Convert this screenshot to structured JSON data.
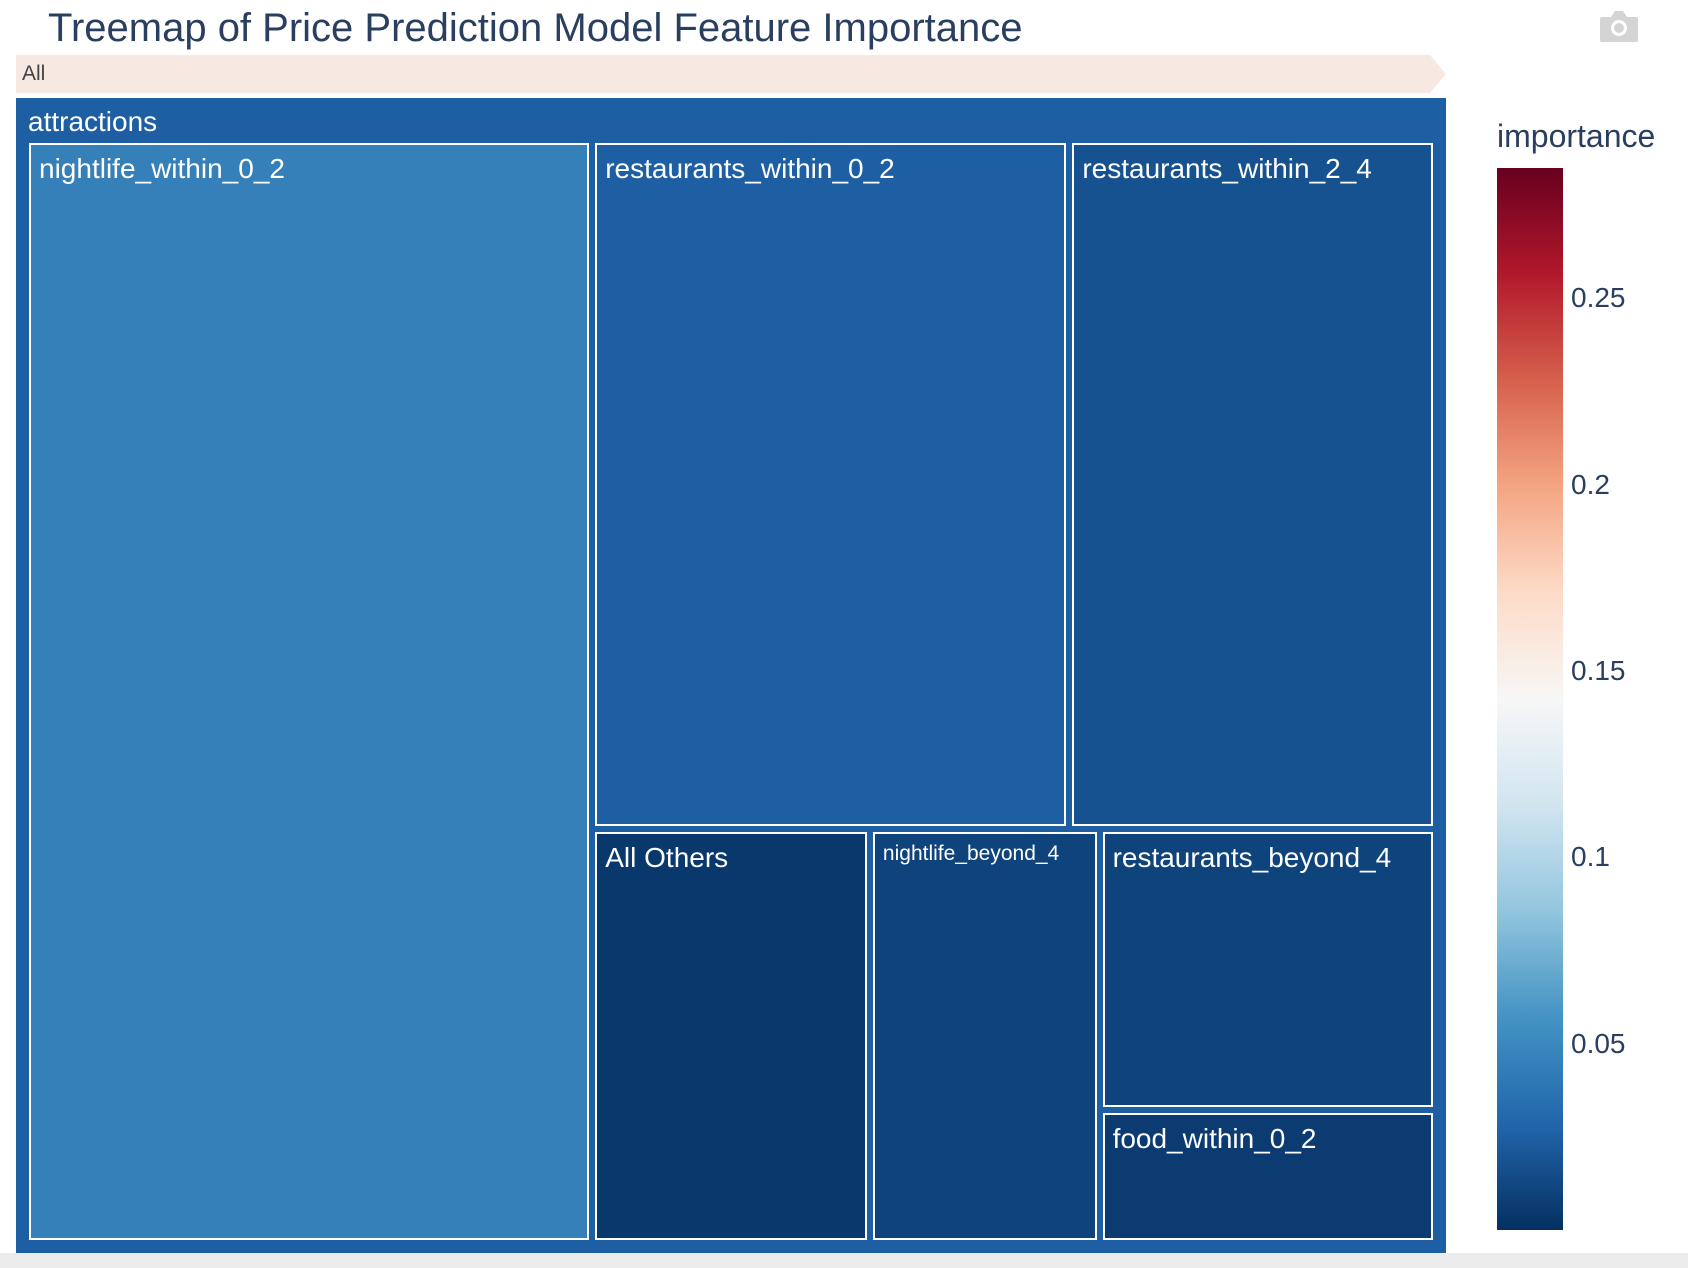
{
  "title": "Treemap of Price Prediction Model Feature Importance",
  "toolbar": {
    "camera_icon": "camera-icon"
  },
  "pathbar": {
    "label": "All"
  },
  "chart_data": {
    "type": "treemap",
    "root": {
      "label": "attractions",
      "importance": 0.025,
      "children": [
        {
          "label": "nightlife_within_0_2",
          "importance": 0.045,
          "value": 0.1412
        },
        {
          "label": "restaurants_within_0_2",
          "importance": 0.025,
          "value": 0.0743
        },
        {
          "label": "restaurants_within_2_4",
          "importance": 0.018,
          "value": 0.0571
        },
        {
          "label": "All Others",
          "importance": 0.004,
          "value": 0.026
        },
        {
          "label": "nightlife_beyond_4",
          "importance": 0.01,
          "value": 0.0215
        },
        {
          "label": "restaurants_beyond_4",
          "importance": 0.01,
          "value": 0.0214
        },
        {
          "label": "food_within_0_2",
          "importance": 0.006,
          "value": 0.0101
        }
      ]
    },
    "colorbar": {
      "title": "importance",
      "range": [
        0,
        0.285
      ],
      "ticks": [
        "0.05",
        "0.1",
        "0.15",
        "0.2",
        "0.25"
      ],
      "tick_values": [
        0.05,
        0.1,
        0.15,
        0.2,
        0.25
      ],
      "colorscale": "RdBu_r",
      "stops": [
        "#053061",
        "#2166ac",
        "#4393c3",
        "#92c5de",
        "#d1e5f0",
        "#f7f7f7",
        "#fddbc7",
        "#f4a582",
        "#d6604d",
        "#b2182b",
        "#67001f"
      ]
    }
  }
}
